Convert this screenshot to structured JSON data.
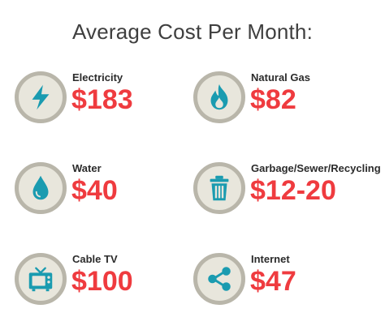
{
  "title": "Average Cost Per Month:",
  "accent_color": "#ef3b3f",
  "icon_color": "#1a9bb0",
  "items": [
    {
      "label": "Electricity",
      "value": "$183",
      "icon": "lightning-icon"
    },
    {
      "label": "Natural Gas",
      "value": "$82",
      "icon": "flame-icon"
    },
    {
      "label": "Water",
      "value": "$40",
      "icon": "water-drop-icon"
    },
    {
      "label": "Garbage/Sewer/Recycling",
      "value": "$12-20",
      "icon": "trash-can-icon"
    },
    {
      "label": "Cable TV",
      "value": "$100",
      "icon": "television-icon"
    },
    {
      "label": "Internet",
      "value": "$47",
      "icon": "share-icon"
    }
  ]
}
